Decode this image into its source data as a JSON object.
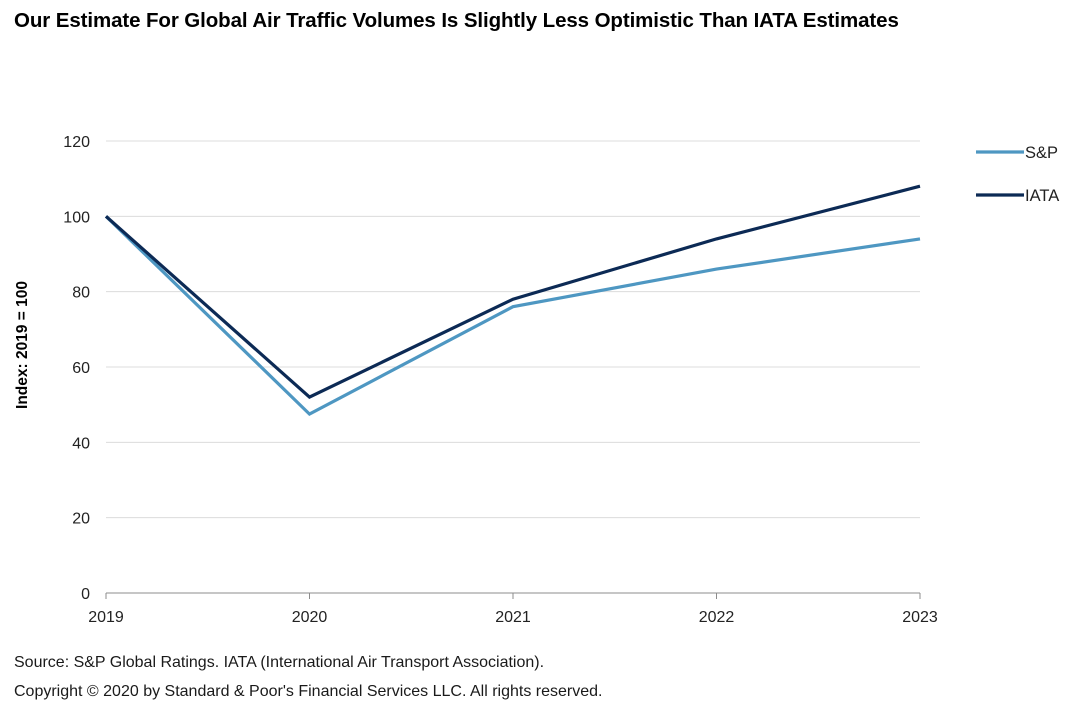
{
  "chart_data": {
    "type": "line",
    "title": "Our Estimate For Global Air Traffic Volumes Is Slightly Less Optimistic Than IATA Estimates",
    "xlabel": "",
    "ylabel": "Index: 2019 = 100",
    "x": [
      "2019",
      "2020",
      "2021",
      "2022",
      "2023"
    ],
    "ylim": [
      0,
      120
    ],
    "yticks": [
      0,
      20,
      40,
      60,
      80,
      100,
      120
    ],
    "grid": true,
    "legend_position": "top-right",
    "series": [
      {
        "name": "S&P",
        "color": "#4e97c2",
        "values": [
          100,
          47.5,
          76,
          86,
          94
        ]
      },
      {
        "name": "IATA",
        "color": "#0c2a55",
        "values": [
          100,
          52,
          78,
          94,
          108
        ]
      }
    ]
  },
  "footer": {
    "source": "Source: S&P Global Ratings. IATA (International Air Transport Association).",
    "copyright": "Copyright © 2020 by Standard & Poor's Financial Services LLC. All rights reserved."
  }
}
